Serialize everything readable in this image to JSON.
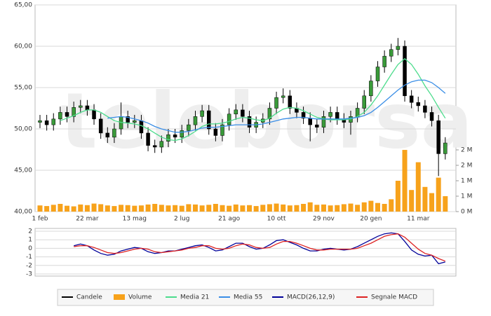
{
  "chart_data": [
    {
      "type": "candlestick",
      "watermark": "teleborsa",
      "categories": [
        "1 feb",
        null,
        null,
        null,
        null,
        null,
        null,
        "22 mar",
        null,
        null,
        null,
        null,
        null,
        null,
        "13 mag",
        null,
        null,
        null,
        null,
        null,
        null,
        "2 lug",
        null,
        null,
        null,
        null,
        null,
        null,
        "21 ago",
        null,
        null,
        null,
        null,
        null,
        null,
        "10 ott",
        null,
        null,
        null,
        null,
        null,
        null,
        "29 nov",
        null,
        null,
        null,
        null,
        null,
        null,
        "20 gen",
        null,
        null,
        null,
        null,
        null,
        null,
        "11 mar",
        null,
        null,
        null,
        null
      ],
      "series": [
        {
          "name": "Candele",
          "color": "#000000",
          "open": [
            50.8,
            51.0,
            50.5,
            51.2,
            52.0,
            51.5,
            52.6,
            52.8,
            52.3,
            51.2,
            49.5,
            49.0,
            50.0,
            51.5,
            50.8,
            51.0,
            49.5,
            48.0,
            47.8,
            48.5,
            49.3,
            49.0,
            49.8,
            50.5,
            51.5,
            52.2,
            50.0,
            49.2,
            50.5,
            51.8,
            52.3,
            51.5,
            50.2,
            50.8,
            51.2,
            52.5,
            53.8,
            54.0,
            52.5,
            52.0,
            51.3,
            50.5,
            50.2,
            51.5,
            52.0,
            51.2,
            50.8,
            51.5,
            52.5,
            54.0,
            55.8,
            57.5,
            58.8,
            59.6,
            60.0,
            54.0,
            53.2,
            52.8,
            52.0,
            51.0,
            47.0
          ],
          "high": [
            51.7,
            51.7,
            51.9,
            52.7,
            52.7,
            53.3,
            53.5,
            53.5,
            53.0,
            51.9,
            50.2,
            50.7,
            53.2,
            52.2,
            51.7,
            51.7,
            50.2,
            48.7,
            49.2,
            50.0,
            50.0,
            50.5,
            51.2,
            52.2,
            52.9,
            52.9,
            50.7,
            51.2,
            52.5,
            53.0,
            53.0,
            52.2,
            51.5,
            51.9,
            53.2,
            54.5,
            54.9,
            54.7,
            53.2,
            52.7,
            52.0,
            51.2,
            52.2,
            52.7,
            52.7,
            51.9,
            52.2,
            53.2,
            54.7,
            56.5,
            58.2,
            59.5,
            60.3,
            61.0,
            60.7,
            54.7,
            53.9,
            53.5,
            52.7,
            51.7,
            49.0
          ],
          "low": [
            50.1,
            49.8,
            49.8,
            50.5,
            50.8,
            50.8,
            51.9,
            51.6,
            50.5,
            48.8,
            48.3,
            48.3,
            49.3,
            50.1,
            50.1,
            48.8,
            47.3,
            47.1,
            47.1,
            47.8,
            48.3,
            48.3,
            49.1,
            49.8,
            50.8,
            49.3,
            48.5,
            48.5,
            49.8,
            51.1,
            50.8,
            49.5,
            49.5,
            50.1,
            50.5,
            51.8,
            53.1,
            51.8,
            51.3,
            50.6,
            48.5,
            49.5,
            49.5,
            50.8,
            50.5,
            50.1,
            49.3,
            50.8,
            51.8,
            53.3,
            55.1,
            56.8,
            58.1,
            58.9,
            53.3,
            52.5,
            52.1,
            51.3,
            50.3,
            44.3,
            46.3
          ],
          "close": [
            51.0,
            50.5,
            51.2,
            52.0,
            51.5,
            52.6,
            52.8,
            52.3,
            51.2,
            49.5,
            49.0,
            50.0,
            51.5,
            50.8,
            51.0,
            49.5,
            48.0,
            47.8,
            48.5,
            49.3,
            49.0,
            49.8,
            50.5,
            51.5,
            52.2,
            50.0,
            49.2,
            50.5,
            51.8,
            52.3,
            51.5,
            50.2,
            50.8,
            51.2,
            52.5,
            53.8,
            54.0,
            52.5,
            52.0,
            51.3,
            50.5,
            50.2,
            51.5,
            52.0,
            51.2,
            50.8,
            51.5,
            52.5,
            54.0,
            55.8,
            57.5,
            58.8,
            59.6,
            60.0,
            54.0,
            53.2,
            52.8,
            52.0,
            51.0,
            47.0,
            48.3
          ]
        },
        {
          "name": "Volume",
          "color": "#f7a21b",
          "axis": "y2",
          "values": [
            200000,
            180000,
            220000,
            250000,
            190000,
            170000,
            230000,
            210000,
            260000,
            240000,
            200000,
            180000,
            220000,
            210000,
            190000,
            200000,
            230000,
            250000,
            220000,
            200000,
            210000,
            190000,
            240000,
            230000,
            200000,
            220000,
            250000,
            210000,
            190000,
            230000,
            200000,
            210000,
            180000,
            220000,
            240000,
            260000,
            230000,
            200000,
            210000,
            250000,
            300000,
            220000,
            230000,
            200000,
            210000,
            240000,
            260000,
            220000,
            300000,
            350000,
            280000,
            250000,
            400000,
            1000000,
            2000000,
            700000,
            1600000,
            800000,
            600000,
            1100000,
            500000
          ]
        },
        {
          "name": "Media 21",
          "color": "#4cdc8c",
          "values": [
            null,
            null,
            null,
            51.0,
            51.3,
            51.6,
            52.0,
            52.3,
            52.3,
            52.0,
            51.5,
            51.0,
            50.8,
            50.7,
            50.6,
            50.4,
            50.0,
            49.5,
            49.0,
            48.7,
            48.6,
            48.8,
            49.2,
            49.7,
            50.3,
            50.6,
            50.6,
            50.7,
            50.9,
            51.2,
            51.4,
            51.3,
            51.1,
            51.0,
            51.3,
            51.9,
            52.4,
            52.6,
            52.5,
            52.2,
            51.8,
            51.4,
            51.2,
            51.1,
            51.1,
            51.1,
            51.2,
            51.5,
            52.0,
            52.9,
            54.0,
            55.3,
            56.6,
            57.8,
            58.5,
            57.8,
            56.6,
            55.2,
            54.0,
            52.6,
            51.3
          ]
        },
        {
          "name": "Media 55",
          "color": "#3a8ee6",
          "values": [
            null,
            null,
            null,
            null,
            null,
            null,
            null,
            null,
            null,
            null,
            51.3,
            51.4,
            51.5,
            51.4,
            51.2,
            51.0,
            50.7,
            50.3,
            50.0,
            49.8,
            49.6,
            49.6,
            49.7,
            49.9,
            50.1,
            50.2,
            50.2,
            50.3,
            50.4,
            50.5,
            50.5,
            50.5,
            50.5,
            50.6,
            50.8,
            51.0,
            51.2,
            51.3,
            51.4,
            51.4,
            51.3,
            51.2,
            51.2,
            51.2,
            51.2,
            51.2,
            51.3,
            51.4,
            51.6,
            52.0,
            52.6,
            53.3,
            54.0,
            54.7,
            55.3,
            55.7,
            55.9,
            55.9,
            55.6,
            55.0,
            54.3
          ]
        }
      ],
      "ylim": [
        40,
        65
      ],
      "yticks": [
        {
          "value": 40,
          "label": "40,00"
        },
        {
          "value": 45,
          "label": "45,00"
        },
        {
          "value": 50,
          "label": "50,00"
        },
        {
          "value": 55,
          "label": "55,00"
        },
        {
          "value": 60,
          "label": "60,00"
        },
        {
          "value": 65,
          "label": "65,00"
        }
      ],
      "y2lim": [
        0,
        6700000
      ],
      "y2ticks": [
        {
          "value": 0,
          "label": "0 M"
        },
        {
          "value": 500000,
          "label": "1 M"
        },
        {
          "value": 1000000,
          "label": "1 M"
        },
        {
          "value": 1500000,
          "label": "2 M"
        },
        {
          "value": 2000000,
          "label": "2 M"
        }
      ],
      "grid": true
    },
    {
      "type": "line",
      "series": [
        {
          "name": "MACD(26,12,9)",
          "color": "#000099",
          "values": [
            null,
            null,
            null,
            null,
            null,
            0.3,
            0.5,
            0.3,
            -0.2,
            -0.6,
            -0.8,
            -0.7,
            -0.3,
            -0.1,
            0.1,
            0.0,
            -0.4,
            -0.6,
            -0.5,
            -0.3,
            -0.3,
            -0.1,
            0.1,
            0.3,
            0.4,
            0.1,
            -0.3,
            -0.2,
            0.2,
            0.6,
            0.6,
            0.2,
            -0.1,
            0.0,
            0.4,
            0.9,
            1.0,
            0.7,
            0.4,
            0.0,
            -0.3,
            -0.3,
            -0.1,
            0.0,
            -0.1,
            -0.2,
            -0.1,
            0.2,
            0.6,
            1.0,
            1.4,
            1.7,
            1.8,
            1.7,
            0.8,
            -0.2,
            -0.7,
            -0.9,
            -0.8,
            -1.8,
            -1.6
          ]
        },
        {
          "name": "Segnale MACD",
          "color": "#dd2222",
          "values": [
            null,
            null,
            null,
            null,
            null,
            0.2,
            0.3,
            0.3,
            0.1,
            -0.2,
            -0.5,
            -0.6,
            -0.5,
            -0.3,
            -0.1,
            0.0,
            -0.1,
            -0.4,
            -0.5,
            -0.4,
            -0.3,
            -0.2,
            0.0,
            0.1,
            0.3,
            0.3,
            0.0,
            -0.1,
            0.0,
            0.3,
            0.5,
            0.4,
            0.1,
            0.0,
            0.1,
            0.5,
            0.8,
            0.8,
            0.6,
            0.3,
            0.0,
            -0.2,
            -0.2,
            -0.1,
            -0.1,
            -0.1,
            -0.1,
            0.0,
            0.3,
            0.6,
            1.0,
            1.4,
            1.6,
            1.7,
            1.3,
            0.6,
            -0.1,
            -0.6,
            -0.8,
            -1.2,
            -1.5
          ]
        }
      ],
      "ylim": [
        -3,
        2
      ],
      "yticks": [
        2,
        1,
        0,
        -1,
        -2,
        -3
      ],
      "grid": true
    }
  ]
}
